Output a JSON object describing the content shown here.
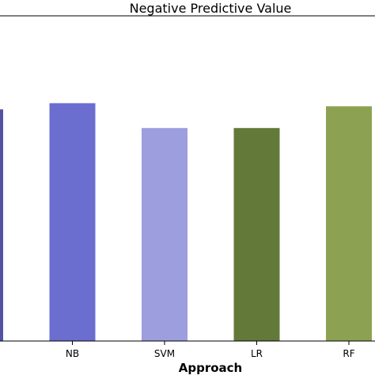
{
  "chart_data": {
    "type": "bar",
    "title": "Negative Predictive Value",
    "xlabel": "Approach",
    "ylabel": "",
    "categories": [
      "",
      "NB",
      "SVM",
      "LR",
      "RF"
    ],
    "values": [
      0.745,
      0.765,
      0.685,
      0.685,
      0.755
    ],
    "colors": [
      "#5254a3",
      "#6b6ecf",
      "#9c9ede",
      "#637939",
      "#8ca252"
    ],
    "ylim": [
      0,
      1.1
    ],
    "grid": false,
    "legend": "none"
  }
}
